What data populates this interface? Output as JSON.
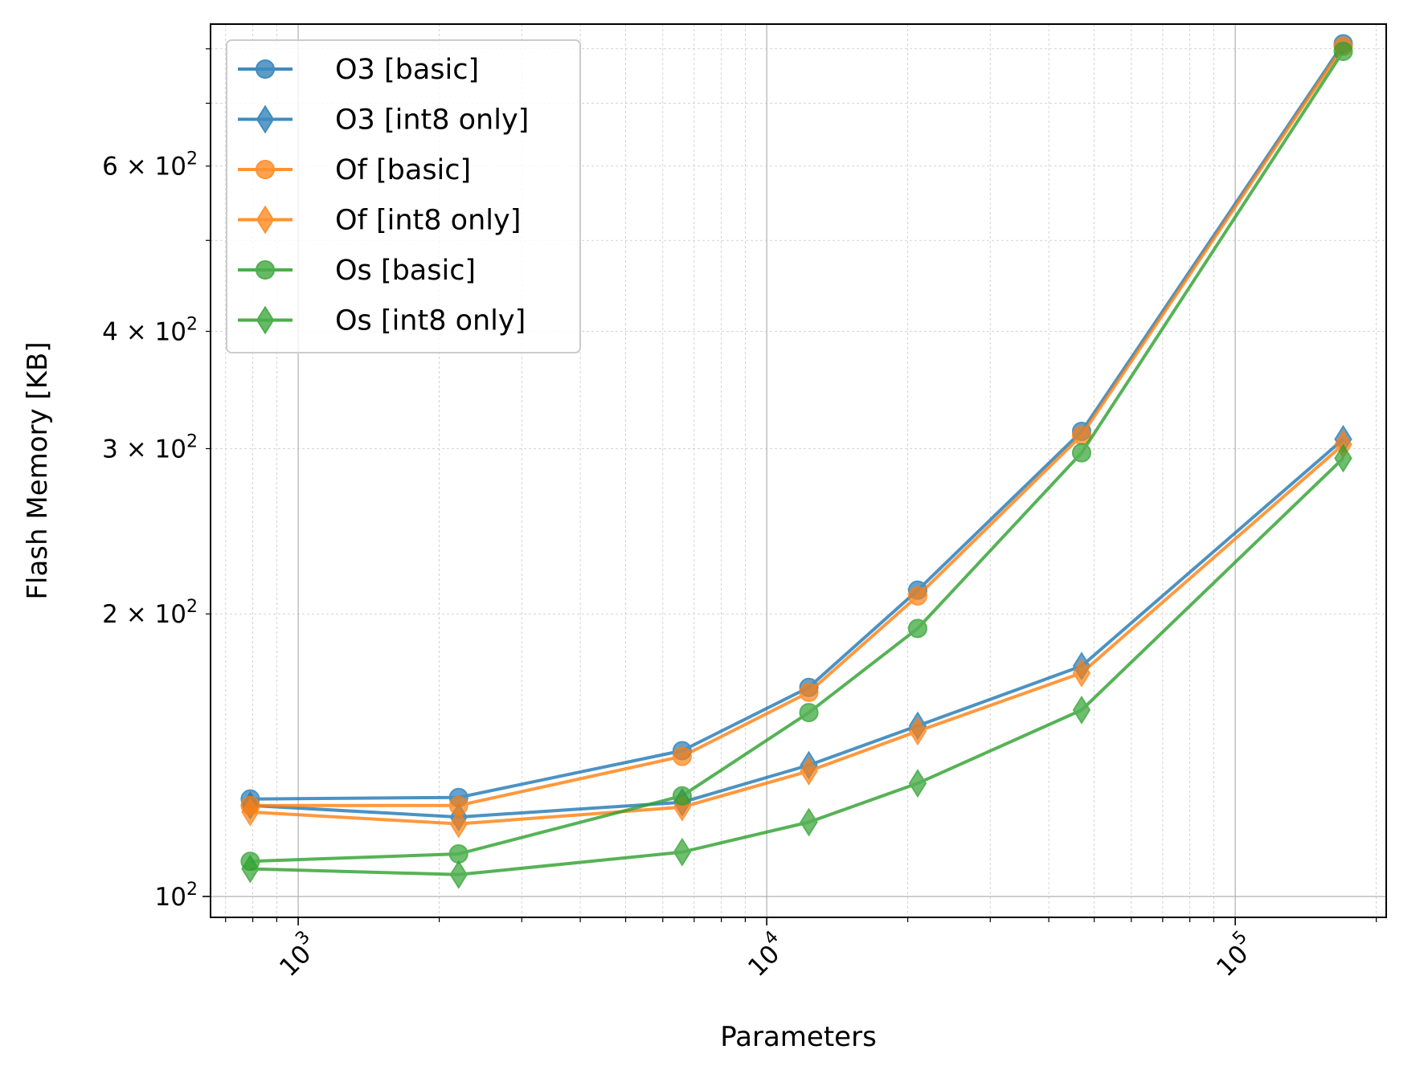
{
  "chart_data": {
    "type": "line",
    "xlabel": "Parameters",
    "ylabel": "Flash Memory [KB]",
    "xscale": "log",
    "yscale": "log",
    "xlim": [
      650,
      210000
    ],
    "ylim": [
      95,
      850
    ],
    "x_ticks": [
      {
        "value": 1000,
        "base": "10",
        "exp": "3"
      },
      {
        "value": 10000,
        "base": "10",
        "exp": "4"
      },
      {
        "value": 100000,
        "base": "10",
        "exp": "5"
      }
    ],
    "y_ticks": [
      {
        "value": 100,
        "coef": "",
        "base": "10",
        "exp": "2"
      },
      {
        "value": 200,
        "coef": "2 × ",
        "base": "10",
        "exp": "2"
      },
      {
        "value": 300,
        "coef": "3 × ",
        "base": "10",
        "exp": "2"
      },
      {
        "value": 400,
        "coef": "4 × ",
        "base": "10",
        "exp": "2"
      },
      {
        "value": 600,
        "coef": "6 × ",
        "base": "10",
        "exp": "2"
      }
    ],
    "grid": true,
    "legend_position": "top-left",
    "x": [
      790,
      2200,
      6600,
      12300,
      21000,
      47000,
      170000
    ],
    "series": [
      {
        "name": "O3 [basic]",
        "color": "#1f77b4",
        "marker": "circle",
        "values": [
          127,
          127.5,
          143,
          167,
          212,
          313,
          810
        ]
      },
      {
        "name": "O3 [int8 only]",
        "color": "#1f77b4",
        "marker": "diamond",
        "values": [
          125,
          121.5,
          126,
          138,
          152,
          176,
          307
        ]
      },
      {
        "name": "Of [basic]",
        "color": "#ff7f0e",
        "marker": "circle",
        "values": [
          125,
          125,
          141,
          165,
          209,
          310,
          805
        ]
      },
      {
        "name": "Of [int8 only]",
        "color": "#ff7f0e",
        "marker": "diamond",
        "values": [
          123,
          119.5,
          124.5,
          136,
          150,
          173,
          303
        ]
      },
      {
        "name": "Os [basic]",
        "color": "#2ca02c",
        "marker": "circle",
        "values": [
          109,
          111,
          128,
          157,
          193,
          297,
          795
        ]
      },
      {
        "name": "Os [int8 only]",
        "color": "#2ca02c",
        "marker": "diamond",
        "values": [
          107,
          105.5,
          111.5,
          120,
          132,
          158,
          293
        ]
      }
    ]
  }
}
